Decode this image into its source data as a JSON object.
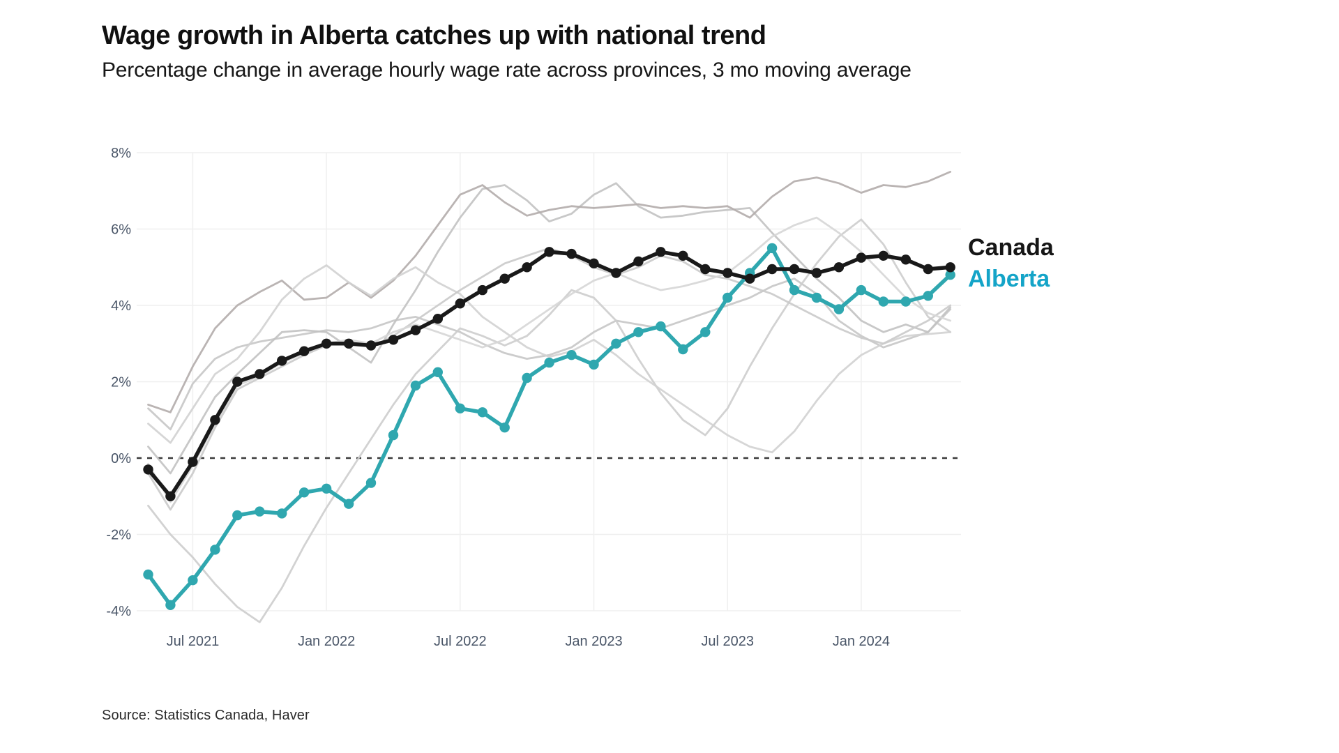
{
  "chart_data": {
    "type": "line",
    "title": "Wage growth in Alberta catches up with national trend",
    "subtitle": "Percentage change in average hourly wage rate across provinces, 3 mo moving average",
    "source": "Source: Statistics Canada, Haver",
    "legend_position": "right-end-of-lines",
    "grid": "faint",
    "y_axis": {
      "unit": "%",
      "range": [
        -4.6,
        8.6
      ],
      "ticks": [
        {
          "value": 8,
          "label": "8%"
        },
        {
          "value": 6,
          "label": "6%"
        },
        {
          "value": 4,
          "label": "4%"
        },
        {
          "value": 2,
          "label": "2%"
        },
        {
          "value": 0,
          "label": "0%"
        },
        {
          "value": -2,
          "label": "-2%"
        },
        {
          "value": -4,
          "label": "-4%"
        }
      ],
      "zero_line_style": "dashed"
    },
    "x_axis": {
      "tick_labels": [
        "Jul 2021",
        "Jan 2022",
        "Jul 2022",
        "Jan 2023",
        "Jul 2023",
        "Jan 2024"
      ],
      "tick_indices": [
        2,
        8,
        14,
        20,
        26,
        32
      ]
    },
    "x": [
      "May 2021",
      "Jun 2021",
      "Jul 2021",
      "Aug 2021",
      "Sep 2021",
      "Oct 2021",
      "Nov 2021",
      "Dec 2021",
      "Jan 2022",
      "Feb 2022",
      "Mar 2022",
      "Apr 2022",
      "May 2022",
      "Jun 2022",
      "Jul 2022",
      "Aug 2022",
      "Sep 2022",
      "Oct 2022",
      "Nov 2022",
      "Dec 2022",
      "Jan 2023",
      "Feb 2023",
      "Mar 2023",
      "Apr 2023",
      "May 2023",
      "Jun 2023",
      "Jul 2023",
      "Aug 2023",
      "Sep 2023",
      "Oct 2023",
      "Nov 2023",
      "Dec 2023",
      "Jan 2024",
      "Feb 2024",
      "Mar 2024",
      "Apr 2024",
      "May 2024"
    ],
    "series": [
      {
        "name": "Canada",
        "color": "#191919",
        "label_color": "#161616",
        "emphasized": true,
        "markers": true,
        "values": [
          -0.3,
          -1.0,
          -0.1,
          1.0,
          2.0,
          2.2,
          2.55,
          2.8,
          3.0,
          3.0,
          2.95,
          3.1,
          3.35,
          3.65,
          4.05,
          4.4,
          4.7,
          5.0,
          5.4,
          5.35,
          5.1,
          4.85,
          5.15,
          5.4,
          5.3,
          4.95,
          4.85,
          4.7,
          4.95,
          4.95,
          4.85,
          5.0,
          5.25,
          5.3,
          5.2,
          4.95,
          5.0
        ]
      },
      {
        "name": "Alberta",
        "color": "#2FA7AF",
        "label_color": "#14A4C8",
        "emphasized": true,
        "markers": true,
        "values": [
          -3.05,
          -3.85,
          -3.2,
          -2.4,
          -1.5,
          -1.4,
          -1.45,
          -0.9,
          -0.8,
          -1.2,
          -0.65,
          0.6,
          1.9,
          2.25,
          1.3,
          1.2,
          0.8,
          2.1,
          2.5,
          2.7,
          2.45,
          3.0,
          3.3,
          3.45,
          2.85,
          3.3,
          4.2,
          4.85,
          5.5,
          4.4,
          4.2,
          3.9,
          4.4,
          4.1,
          4.1,
          4.25,
          4.8
        ]
      },
      {
        "name": "",
        "role": "other-province",
        "color": "#c6c6c6",
        "emphasized": false,
        "markers": false,
        "values": [
          1.3,
          0.75,
          1.95,
          2.6,
          2.9,
          3.05,
          3.15,
          3.25,
          3.35,
          3.3,
          3.4,
          3.6,
          3.7,
          3.5,
          3.3,
          3.0,
          2.75,
          2.6,
          2.7,
          2.9,
          3.3,
          3.6,
          3.5,
          3.4,
          3.6,
          3.8,
          4.0,
          4.2,
          4.5,
          4.7,
          4.3,
          3.6,
          3.2,
          2.9,
          3.1,
          3.3,
          3.9
        ]
      },
      {
        "name": "",
        "role": "other-province",
        "color": "#cdcdcd",
        "emphasized": false,
        "markers": false,
        "values": [
          -1.25,
          -2.0,
          -2.6,
          -3.3,
          -3.9,
          -4.3,
          -3.4,
          -2.3,
          -1.3,
          -0.4,
          0.5,
          1.4,
          2.2,
          2.8,
          3.4,
          3.2,
          2.95,
          3.2,
          3.75,
          4.4,
          4.2,
          3.6,
          2.6,
          1.7,
          1.0,
          0.6,
          1.3,
          2.4,
          3.4,
          4.3,
          5.1,
          5.8,
          6.25,
          5.6,
          4.6,
          3.7,
          3.3
        ]
      },
      {
        "name": "",
        "role": "other-province",
        "color": "#c2c2c2",
        "emphasized": false,
        "markers": false,
        "values": [
          0.3,
          -0.4,
          0.6,
          1.6,
          2.2,
          2.75,
          3.3,
          3.35,
          3.3,
          2.9,
          2.5,
          3.5,
          4.4,
          5.4,
          6.3,
          7.05,
          7.15,
          6.75,
          6.2,
          6.4,
          6.9,
          7.2,
          6.6,
          6.3,
          6.35,
          6.45,
          6.5,
          6.55,
          5.9,
          5.3,
          4.7,
          4.2,
          3.6,
          3.3,
          3.5,
          3.3,
          3.95
        ]
      },
      {
        "name": "",
        "role": "other-province",
        "color": "#b3acab",
        "emphasized": false,
        "markers": false,
        "values": [
          1.4,
          1.2,
          2.4,
          3.4,
          4.0,
          4.35,
          4.65,
          4.15,
          4.2,
          4.6,
          4.2,
          4.65,
          5.3,
          6.1,
          6.9,
          7.15,
          6.7,
          6.35,
          6.5,
          6.6,
          6.55,
          6.6,
          6.65,
          6.55,
          6.6,
          6.55,
          6.6,
          6.3,
          6.85,
          7.25,
          7.35,
          7.2,
          6.95,
          7.15,
          7.1,
          7.25,
          7.5
        ]
      },
      {
        "name": "",
        "role": "other-province",
        "color": "#d2d2d2",
        "emphasized": false,
        "markers": false,
        "values": [
          0.9,
          0.4,
          1.3,
          2.2,
          2.6,
          3.3,
          4.15,
          4.7,
          5.05,
          4.6,
          4.25,
          4.7,
          5.0,
          4.6,
          4.3,
          3.7,
          3.3,
          2.9,
          2.65,
          2.8,
          3.1,
          2.7,
          2.2,
          1.8,
          1.4,
          1.0,
          0.6,
          0.3,
          0.15,
          0.7,
          1.5,
          2.2,
          2.7,
          3.0,
          3.2,
          3.25,
          3.3
        ]
      },
      {
        "name": "",
        "role": "other-province",
        "color": "#cacaca",
        "emphasized": false,
        "markers": false,
        "values": [
          -0.4,
          -1.35,
          -0.4,
          0.8,
          1.8,
          2.1,
          2.4,
          2.7,
          2.95,
          3.05,
          2.9,
          3.2,
          3.6,
          4.0,
          4.4,
          4.75,
          5.1,
          5.3,
          5.5,
          5.3,
          5.0,
          4.8,
          5.0,
          5.3,
          5.15,
          4.8,
          4.7,
          4.5,
          4.3,
          4.0,
          3.7,
          3.4,
          3.15,
          3.0,
          3.3,
          3.6,
          4.0
        ]
      },
      {
        "name": "",
        "role": "other-province",
        "color": "#d6d6d6",
        "emphasized": false,
        "markers": false,
        "values": [
          -0.15,
          -1.15,
          -0.2,
          0.9,
          1.9,
          2.15,
          2.5,
          2.75,
          3.0,
          3.1,
          3.0,
          3.3,
          3.5,
          3.3,
          3.1,
          2.9,
          3.1,
          3.5,
          3.9,
          4.3,
          4.65,
          4.85,
          4.6,
          4.4,
          4.5,
          4.65,
          4.85,
          5.3,
          5.8,
          6.1,
          6.3,
          5.9,
          5.4,
          4.8,
          4.2,
          3.8,
          3.6
        ]
      }
    ]
  }
}
